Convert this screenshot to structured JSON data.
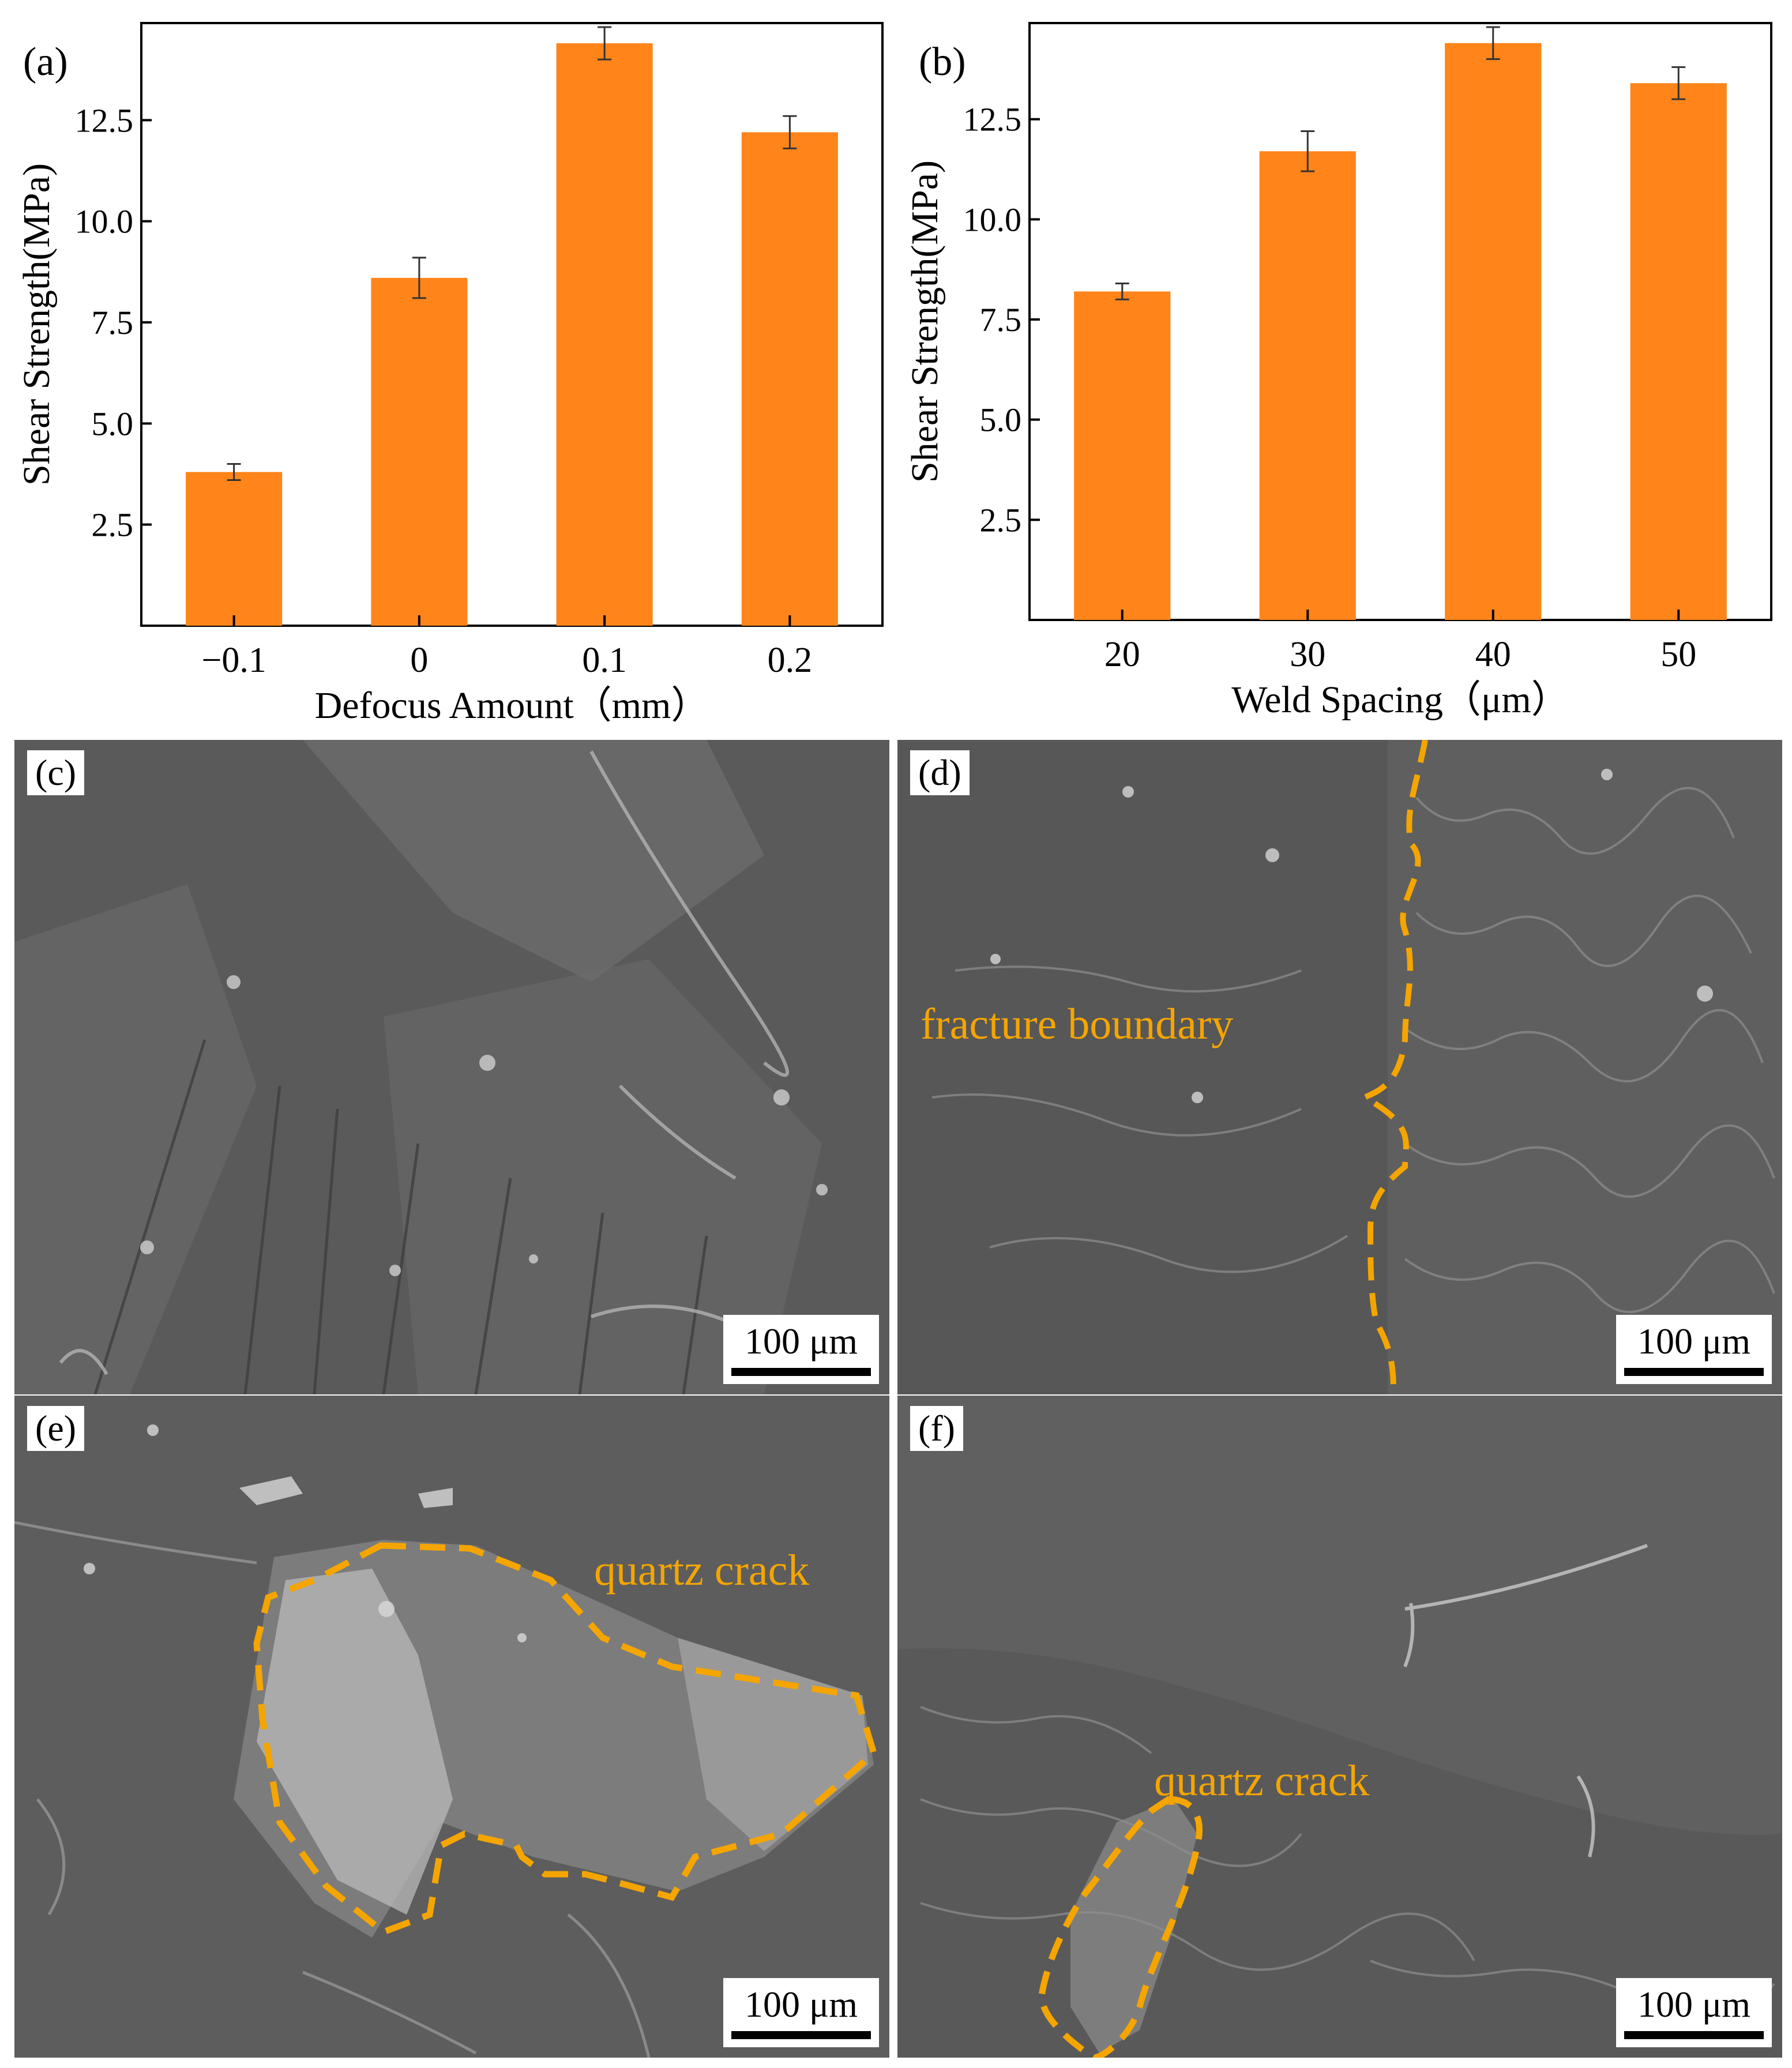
{
  "chart_data": [
    {
      "type": "bar",
      "panel_label": "(a)",
      "categories": [
        "−0.1",
        "0",
        "0.1",
        "0.2"
      ],
      "values": [
        3.8,
        8.6,
        14.4,
        12.2
      ],
      "errors": [
        0.2,
        0.5,
        0.4,
        0.4
      ],
      "xlabel": "Defocus Amount（mm）",
      "ylabel": "Shear Strength(MPa)",
      "yticks": [
        "2.5",
        "5.0",
        "7.5",
        "10.0",
        "12.5"
      ],
      "ytick_values": [
        2.5,
        5.0,
        7.5,
        10.0,
        12.5
      ],
      "ylim": [
        0,
        14.9
      ],
      "bar_color": "#ff8419",
      "grid": false,
      "legend": "none"
    },
    {
      "type": "bar",
      "panel_label": "(b)",
      "categories": [
        "20",
        "30",
        "40",
        "50"
      ],
      "values": [
        8.2,
        11.7,
        14.4,
        13.4
      ],
      "errors": [
        0.2,
        0.5,
        0.4,
        0.4
      ],
      "xlabel": "Weld Spacing（μm）",
      "ylabel": "Shear Strength(MPa)",
      "yticks": [
        "2.5",
        "5.0",
        "7.5",
        "10.0",
        "12.5"
      ],
      "ytick_values": [
        2.5,
        5.0,
        7.5,
        10.0,
        12.5
      ],
      "ylim": [
        0,
        14.9
      ],
      "bar_color": "#ff8419",
      "grid": false,
      "legend": "none"
    }
  ],
  "micrographs": [
    {
      "label": "(c)",
      "scale": "100 μm",
      "annotation": ""
    },
    {
      "label": "(d)",
      "scale": "100 μm",
      "annotation": "fracture boundary"
    },
    {
      "label": "(e)",
      "scale": "100 μm",
      "annotation": "quartz crack"
    },
    {
      "label": "(f)",
      "scale": "100 μm",
      "annotation": "quartz crack"
    }
  ],
  "colors": {
    "bar": "#ff8419",
    "annotation": "#f5a500",
    "sem_background": "#5c5c5c"
  }
}
